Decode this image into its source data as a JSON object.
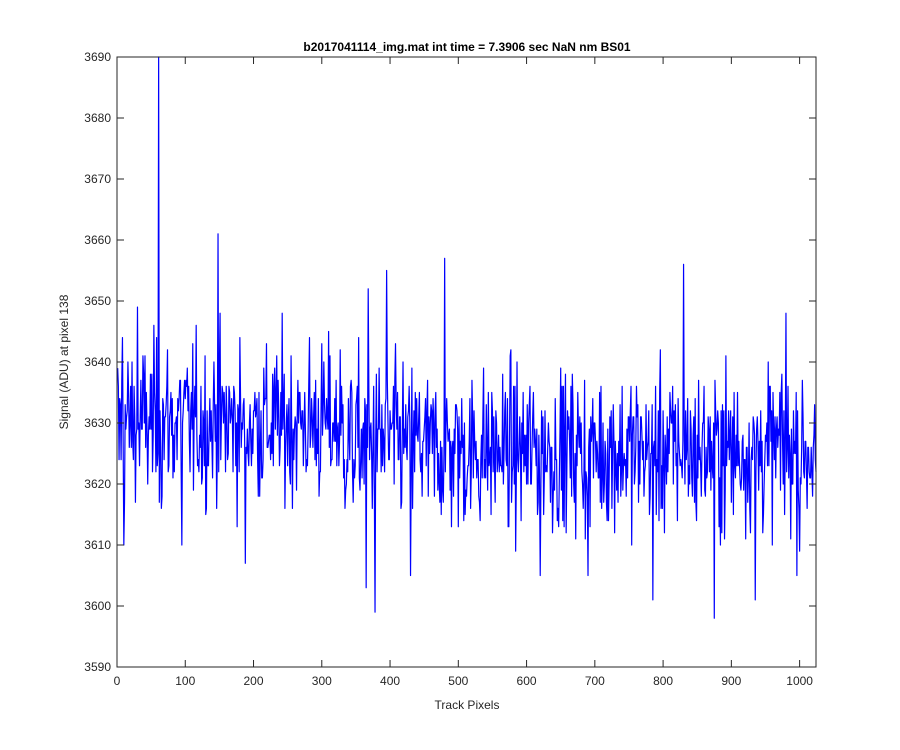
{
  "chart_data": {
    "type": "line",
    "title": "b2017041114_img.mat int time = 7.3906 sec  NaN nm BS01",
    "xlabel": "Track Pixels",
    "ylabel": "Signal (ADU) at pixel 138",
    "xlim": [
      0,
      1024
    ],
    "ylim": [
      3590,
      3690
    ],
    "xticks": [
      0,
      100,
      200,
      300,
      400,
      500,
      600,
      700,
      800,
      900,
      1000
    ],
    "yticks": [
      3590,
      3600,
      3610,
      3620,
      3630,
      3640,
      3650,
      3660,
      3670,
      3680,
      3690
    ],
    "grid": false,
    "line_color": "#0000ff",
    "series": [
      {
        "n_points": 1024,
        "x_start": 1,
        "x_step": 1,
        "mean": 3627,
        "noise_std": 6.5,
        "key_points": [
          {
            "x": 3,
            "y": 3624
          },
          {
            "x": 8,
            "y": 3644
          },
          {
            "x": 10,
            "y": 3610
          },
          {
            "x": 30,
            "y": 3649
          },
          {
            "x": 61,
            "y": 3690
          },
          {
            "x": 65,
            "y": 3616
          },
          {
            "x": 95,
            "y": 3610
          },
          {
            "x": 148,
            "y": 3661
          },
          {
            "x": 188,
            "y": 3607
          },
          {
            "x": 365,
            "y": 3603
          },
          {
            "x": 368,
            "y": 3652
          },
          {
            "x": 378,
            "y": 3599
          },
          {
            "x": 395,
            "y": 3655
          },
          {
            "x": 430,
            "y": 3605
          },
          {
            "x": 480,
            "y": 3657
          },
          {
            "x": 620,
            "y": 3605
          },
          {
            "x": 690,
            "y": 3605
          },
          {
            "x": 785,
            "y": 3601
          },
          {
            "x": 830,
            "y": 3656
          },
          {
            "x": 875,
            "y": 3598
          },
          {
            "x": 935,
            "y": 3601
          },
          {
            "x": 980,
            "y": 3648
          },
          {
            "x": 1000,
            "y": 3609
          },
          {
            "x": 1024,
            "y": 3622
          }
        ]
      }
    ]
  }
}
